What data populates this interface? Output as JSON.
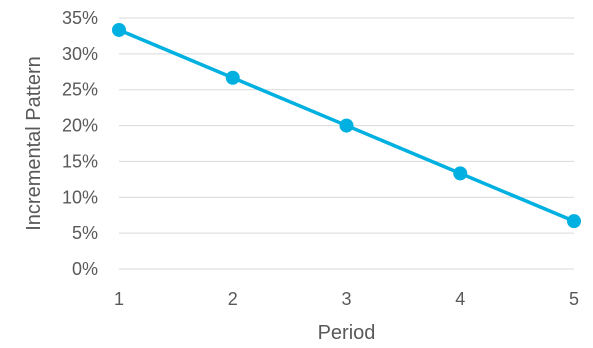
{
  "chart_data": {
    "type": "line",
    "title": "",
    "xlabel": "Period",
    "ylabel": "Incremental Pattern",
    "x": [
      1,
      2,
      3,
      4,
      5
    ],
    "xticks": [
      "1",
      "2",
      "3",
      "4",
      "5"
    ],
    "yticks": [
      "0%",
      "5%",
      "10%",
      "15%",
      "20%",
      "25%",
      "30%",
      "35%"
    ],
    "ytick_values": [
      0,
      0.05,
      0.1,
      0.15,
      0.2,
      0.25,
      0.3,
      0.35
    ],
    "xlim": [
      1,
      5
    ],
    "ylim": [
      0,
      0.35
    ],
    "grid": "horizontal",
    "legend": "none",
    "series": [
      {
        "values": [
          0.3333,
          0.2667,
          0.2,
          0.1333,
          0.0667
        ],
        "color": "#00b0e0"
      }
    ]
  }
}
